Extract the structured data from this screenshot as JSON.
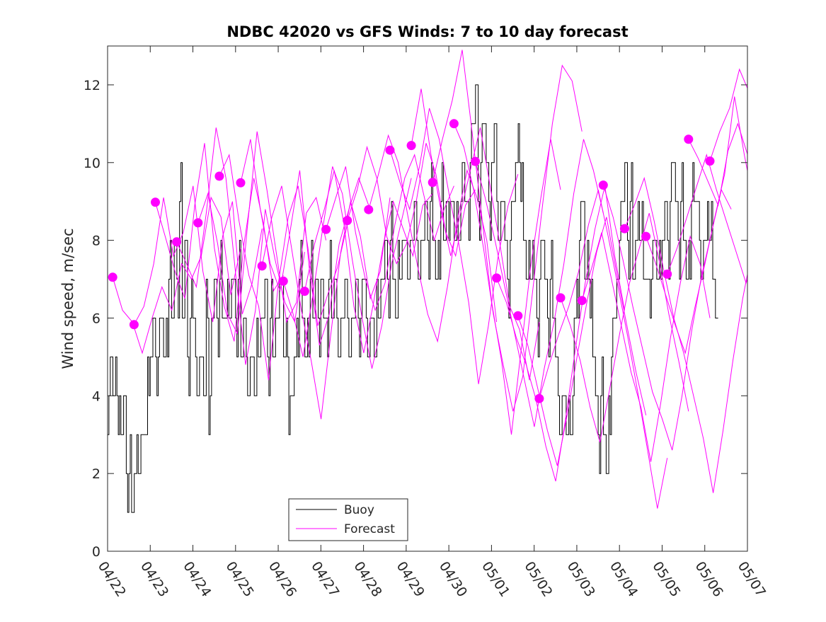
{
  "chart_data": {
    "type": "line",
    "title": "NDBC 42020 vs GFS Winds: 7 to 10 day forecast",
    "xlabel": "",
    "ylabel": "Wind speed, m/sec",
    "xlim": [
      "04/22",
      "05/07"
    ],
    "ylim": [
      0,
      13
    ],
    "x_ticks": [
      "04/22",
      "04/23",
      "04/24",
      "04/25",
      "04/26",
      "04/27",
      "04/28",
      "04/29",
      "04/30",
      "05/01",
      "05/02",
      "05/03",
      "05/04",
      "05/05",
      "05/06",
      "05/07"
    ],
    "y_ticks": [
      0,
      2,
      4,
      6,
      8,
      10,
      12
    ],
    "grid": false,
    "legend": {
      "position": "bottom-center",
      "entries": [
        "Buoy",
        "Forecast"
      ]
    },
    "colors": {
      "buoy": "#000000",
      "forecast": "#ff00ff",
      "axis": "#262626"
    },
    "buoy_day_values": [
      [
        3,
        5,
        4,
        5,
        3,
        3,
        4,
        2,
        2,
        1,
        2,
        3,
        2,
        3,
        3,
        5
      ],
      [
        5,
        6,
        5,
        5,
        6,
        5,
        6,
        7,
        6,
        8,
        7,
        9,
        6,
        8,
        5,
        6
      ],
      [
        6,
        5,
        4,
        5,
        4,
        7,
        3,
        6,
        7,
        6,
        7,
        6,
        6,
        7,
        6,
        7
      ],
      [
        6,
        7,
        5,
        6,
        5,
        4,
        5,
        4,
        6,
        5,
        6,
        7,
        5,
        6,
        5,
        6
      ],
      [
        6,
        7,
        5,
        6,
        3,
        4,
        5,
        6,
        7,
        6,
        5,
        6,
        7,
        6,
        7,
        6
      ],
      [
        7,
        6,
        6,
        7,
        6,
        7,
        6,
        5,
        6,
        7,
        6,
        5,
        6,
        7,
        6,
        6
      ],
      [
        7,
        6,
        5,
        6,
        5,
        7,
        6,
        7,
        8,
        7,
        8,
        7,
        6,
        8,
        7,
        8
      ],
      [
        8,
        7,
        8,
        9,
        8,
        7,
        8,
        9,
        8,
        9,
        8,
        7,
        8,
        9,
        8,
        9
      ],
      [
        8,
        9,
        8,
        9,
        8,
        10,
        9,
        9,
        10,
        11,
        12,
        9,
        10,
        11,
        10,
        9
      ],
      [
        10,
        11,
        9,
        8,
        9,
        8,
        7,
        8,
        9,
        10,
        11,
        9,
        8,
        7,
        8,
        7
      ],
      [
        7,
        6,
        7,
        8,
        7,
        6,
        7,
        6,
        5,
        4,
        3,
        4,
        3,
        4,
        3,
        6
      ],
      [
        7,
        8,
        9,
        7,
        8,
        6,
        5,
        4,
        3,
        4,
        3,
        2,
        4,
        5,
        6,
        7
      ],
      [
        8,
        9,
        10,
        8,
        9,
        7,
        8,
        9,
        8,
        7,
        7,
        7,
        7,
        8,
        7,
        8
      ],
      [
        8,
        9,
        8,
        9,
        10,
        9,
        8,
        9,
        8,
        7,
        8,
        9,
        9,
        9,
        8,
        7
      ],
      [
        8,
        9,
        8,
        7,
        6,
        5,
        7,
        7,
        7,
        7,
        7,
        7,
        7,
        7,
        7,
        7
      ]
    ],
    "forecast_markers": [
      {
        "x": 0.12,
        "y": 7.05
      },
      {
        "x": 0.62,
        "y": 5.83
      },
      {
        "x": 1.12,
        "y": 8.98
      },
      {
        "x": 1.62,
        "y": 7.96
      },
      {
        "x": 2.12,
        "y": 8.45
      },
      {
        "x": 2.62,
        "y": 9.65
      },
      {
        "x": 3.12,
        "y": 9.48
      },
      {
        "x": 3.62,
        "y": 7.34
      },
      {
        "x": 4.12,
        "y": 6.95
      },
      {
        "x": 4.62,
        "y": 6.69
      },
      {
        "x": 5.12,
        "y": 8.28
      },
      {
        "x": 5.62,
        "y": 8.51
      },
      {
        "x": 6.12,
        "y": 8.79
      },
      {
        "x": 6.62,
        "y": 10.32
      },
      {
        "x": 7.12,
        "y": 10.44
      },
      {
        "x": 7.62,
        "y": 9.49
      },
      {
        "x": 8.12,
        "y": 11.0
      },
      {
        "x": 8.62,
        "y": 10.03
      },
      {
        "x": 9.12,
        "y": 7.03
      },
      {
        "x": 9.62,
        "y": 6.06
      },
      {
        "x": 10.12,
        "y": 3.93
      },
      {
        "x": 10.62,
        "y": 6.52
      },
      {
        "x": 11.12,
        "y": 6.45
      },
      {
        "x": 11.62,
        "y": 9.42
      },
      {
        "x": 12.12,
        "y": 8.3
      },
      {
        "x": 12.62,
        "y": 8.1
      },
      {
        "x": 13.12,
        "y": 7.13
      },
      {
        "x": 13.62,
        "y": 10.6
      },
      {
        "x": 14.12,
        "y": 10.04
      }
    ],
    "forecast_runs": [
      [
        6.6,
        6.2,
        5.9,
        5.1,
        6.0,
        6.8,
        6.2,
        7.4,
        7.0,
        7.6,
        9.1,
        8.6,
        6.6,
        7.8
      ],
      [
        5.8,
        6.3,
        7.4,
        9.1,
        7.6,
        8.2,
        9.4,
        7.2,
        5.9,
        8.1,
        9.0,
        6.1,
        6.9,
        8.3
      ],
      [
        9.0,
        8.1,
        7.2,
        6.5,
        8.9,
        10.5,
        7.8,
        6.3,
        5.4,
        7.9,
        9.6,
        8.4,
        6.7,
        7.1
      ],
      [
        8.0,
        7.4,
        6.8,
        8.7,
        10.9,
        9.6,
        7.1,
        4.8,
        6.2,
        8.8,
        7.5,
        6.4,
        5.9,
        7.7
      ],
      [
        8.5,
        9.2,
        7.9,
        6.1,
        5.6,
        8.3,
        10.8,
        9.3,
        7.6,
        5.9,
        6.4,
        8.7,
        9.1,
        8.0
      ],
      [
        9.6,
        10.2,
        8.5,
        7.1,
        6.3,
        4.4,
        6.9,
        8.6,
        9.4,
        7.8,
        5.8,
        6.6,
        7.3,
        8.4
      ],
      [
        9.5,
        10.6,
        8.8,
        7.4,
        6.7,
        8.2,
        9.8,
        7.2,
        5.3,
        6.1,
        7.9,
        8.8,
        9.6,
        8.9
      ],
      [
        7.3,
        8.6,
        9.4,
        7.8,
        6.2,
        4.9,
        3.4,
        5.6,
        7.7,
        9.0,
        8.1,
        6.5,
        7.2,
        9.1
      ],
      [
        7.0,
        6.1,
        5.0,
        6.6,
        8.3,
        9.9,
        9.2,
        7.5,
        6.0,
        4.7,
        5.8,
        7.4,
        8.5,
        9.6
      ],
      [
        6.7,
        7.9,
        8.8,
        9.8,
        8.4,
        6.3,
        5.1,
        6.4,
        7.9,
        9.0,
        8.3,
        7.6,
        8.9,
        9.2
      ],
      [
        8.3,
        9.1,
        9.9,
        8.2,
        7.0,
        6.2,
        6.9,
        8.4,
        9.6,
        10.2,
        9.1,
        8.0,
        8.8,
        9.4
      ],
      [
        8.5,
        9.3,
        10.4,
        9.6,
        8.1,
        7.4,
        7.9,
        9.0,
        10.5,
        9.7,
        8.2,
        7.6,
        8.9,
        9.3
      ],
      [
        8.8,
        9.7,
        10.7,
        10.0,
        8.6,
        7.3,
        6.1,
        5.4,
        6.8,
        8.5,
        9.8,
        9.1,
        8.0,
        5.9
      ],
      [
        10.3,
        9.5,
        8.8,
        9.9,
        11.4,
        10.6,
        9.2,
        7.9,
        6.4,
        4.3,
        5.8,
        7.6,
        8.9,
        9.7
      ],
      [
        10.4,
        11.9,
        10.2,
        8.8,
        7.6,
        8.7,
        9.8,
        10.9,
        9.4,
        7.9,
        6.3,
        5.7,
        4.4,
        5.9
      ],
      [
        9.5,
        10.6,
        11.6,
        12.9,
        10.8,
        8.6,
        6.4,
        4.9,
        3.0,
        5.2,
        7.4,
        9.1,
        10.6,
        9.3
      ],
      [
        11.0,
        10.4,
        9.3,
        7.8,
        6.1,
        4.8,
        3.6,
        4.5,
        6.7,
        8.9,
        11.0,
        12.5,
        12.1,
        10.8
      ],
      [
        10.0,
        9.1,
        8.0,
        6.8,
        5.6,
        4.4,
        3.2,
        4.7,
        5.9,
        7.4,
        9.2,
        10.6,
        9.8,
        8.7
      ],
      [
        7.0,
        6.4,
        5.5,
        4.8,
        3.9,
        2.7,
        1.8,
        3.4,
        5.2,
        6.9,
        8.3,
        9.4,
        7.6,
        6.2
      ],
      [
        6.1,
        5.3,
        4.2,
        3.1,
        2.2,
        3.5,
        5.0,
        6.4,
        7.7,
        8.6,
        7.2,
        5.9,
        4.6,
        3.5
      ],
      [
        3.9,
        4.8,
        5.6,
        6.3,
        7.2,
        8.4,
        9.3,
        8.1,
        6.8,
        5.5,
        4.1,
        2.6,
        1.1,
        2.4
      ],
      [
        6.5,
        5.8,
        4.9,
        3.7,
        2.8,
        4.2,
        5.6,
        6.9,
        7.8,
        8.7,
        7.5,
        6.1,
        4.9,
        3.6
      ],
      [
        6.4,
        7.3,
        8.2,
        7.0,
        5.8,
        4.6,
        3.7,
        2.3,
        3.8,
        5.5,
        6.9,
        8.1,
        7.4,
        6.0
      ],
      [
        9.4,
        8.6,
        7.5,
        6.3,
        5.2,
        4.1,
        3.4,
        2.6,
        4.0,
        5.7,
        7.1,
        8.2,
        9.3,
        8.8
      ],
      [
        8.3,
        8.9,
        9.6,
        8.5,
        7.2,
        6.0,
        5.1,
        4.0,
        2.9,
        1.5,
        3.1,
        4.9,
        6.5,
        7.8
      ],
      [
        8.1,
        7.4,
        6.6,
        5.8,
        5.1,
        6.3,
        7.4,
        8.6,
        9.7,
        11.7,
        10.2,
        8.9,
        7.6,
        9.2
      ],
      [
        7.1,
        7.8,
        8.6,
        9.4,
        10.2,
        9.3,
        8.5,
        7.7,
        6.9,
        7.6,
        8.4,
        9.1,
        9.9,
        10.6
      ],
      [
        10.6,
        10.1,
        9.5,
        8.9,
        10.3,
        11.0,
        10.2,
        9.4,
        8.6,
        9.8,
        10.4,
        9.6,
        8.8,
        9.5
      ],
      [
        10.0,
        10.8,
        11.4,
        12.4,
        11.8,
        10.6,
        9.4,
        8.2,
        8.8,
        9.6,
        10.3,
        11.9,
        10.7,
        9.8
      ]
    ]
  }
}
